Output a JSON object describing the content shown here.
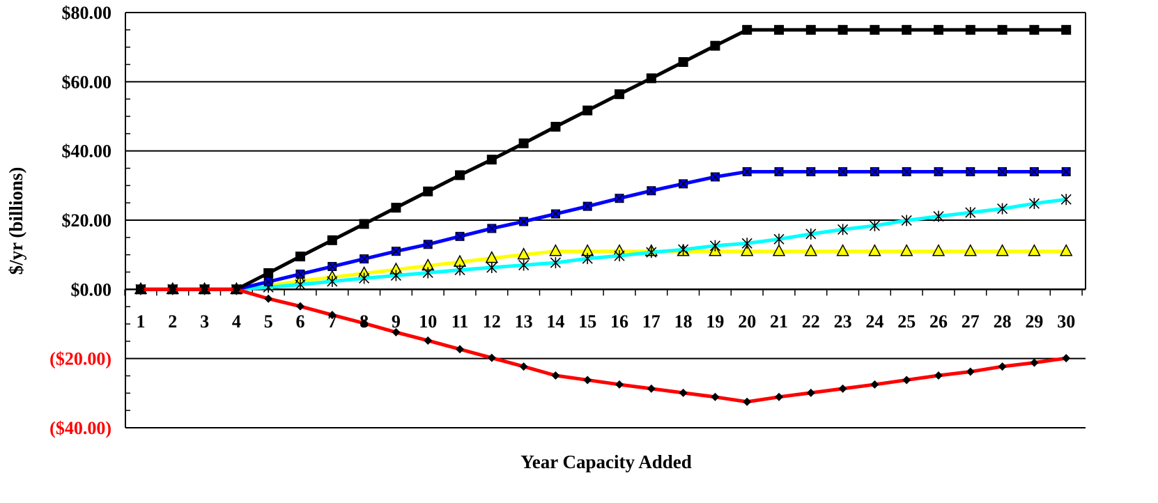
{
  "chart_data": {
    "type": "line",
    "title": "",
    "xlabel": "Year Capacity Added",
    "ylabel": "$/yr (billions)",
    "ylim": [
      -40,
      80
    ],
    "yticks": [
      80,
      60,
      40,
      20,
      0,
      -20,
      -40
    ],
    "ytick_labels": [
      "$80.00",
      "$60.00",
      "$40.00",
      "$20.00",
      "$0.00",
      "($20.00)",
      "($40.00)"
    ],
    "negative_tick_color": "#ff0000",
    "grid": "horizontal",
    "legend": "none",
    "x": [
      1,
      2,
      3,
      4,
      5,
      6,
      7,
      8,
      9,
      10,
      11,
      12,
      13,
      14,
      15,
      16,
      17,
      18,
      19,
      20,
      21,
      22,
      23,
      24,
      25,
      26,
      27,
      28,
      29,
      30
    ],
    "series": [
      {
        "color": "#000000",
        "marker": "square",
        "values": [
          0,
          0,
          0,
          0,
          4.7,
          9.5,
          14.2,
          18.9,
          23.6,
          28.3,
          33.0,
          37.5,
          42.2,
          47.0,
          51.7,
          56.4,
          61.0,
          65.7,
          70.4,
          75,
          75,
          75,
          75,
          75,
          75,
          75,
          75,
          75,
          75,
          75
        ]
      },
      {
        "color": "#0000ff",
        "marker": "x-square",
        "values": [
          0,
          0,
          0,
          0,
          2.2,
          4.4,
          6.6,
          8.8,
          11.0,
          13.0,
          15.3,
          17.6,
          19.6,
          21.8,
          24.0,
          26.3,
          28.5,
          30.5,
          32.5,
          34,
          34,
          34,
          34,
          34,
          34,
          34,
          34,
          34,
          34,
          34
        ]
      },
      {
        "color": "#ffff00",
        "marker": "triangle",
        "values": [
          0,
          0,
          0,
          0,
          1.1,
          2.4,
          3.5,
          4.6,
          5.7,
          6.8,
          7.9,
          9.0,
          10.0,
          11,
          11,
          11,
          11,
          11,
          11,
          11,
          11,
          11,
          11,
          11,
          11,
          11,
          11,
          11,
          11,
          11
        ]
      },
      {
        "color": "#00ffff",
        "marker": "asterisk",
        "values": [
          0,
          0,
          0,
          0,
          0.6,
          1.4,
          2.3,
          3.2,
          4.0,
          4.8,
          5.6,
          6.3,
          7.0,
          7.7,
          8.9,
          9.7,
          10.7,
          11.5,
          12.6,
          13.3,
          14.5,
          16.0,
          17.3,
          18.4,
          19.9,
          21.1,
          22.2,
          23.3,
          24.8,
          26.0
        ]
      },
      {
        "color": "#ff0000",
        "marker": "diamond",
        "values": [
          0,
          0,
          0,
          0,
          -2.7,
          -4.9,
          -7.4,
          -9.8,
          -12.4,
          -14.8,
          -17.3,
          -19.8,
          -22.3,
          -24.9,
          -26.2,
          -27.5,
          -28.7,
          -29.9,
          -31.1,
          -32.5,
          -31.1,
          -29.9,
          -28.7,
          -27.5,
          -26.2,
          -24.9,
          -23.8,
          -22.3,
          -21.2,
          -19.9
        ]
      }
    ]
  }
}
